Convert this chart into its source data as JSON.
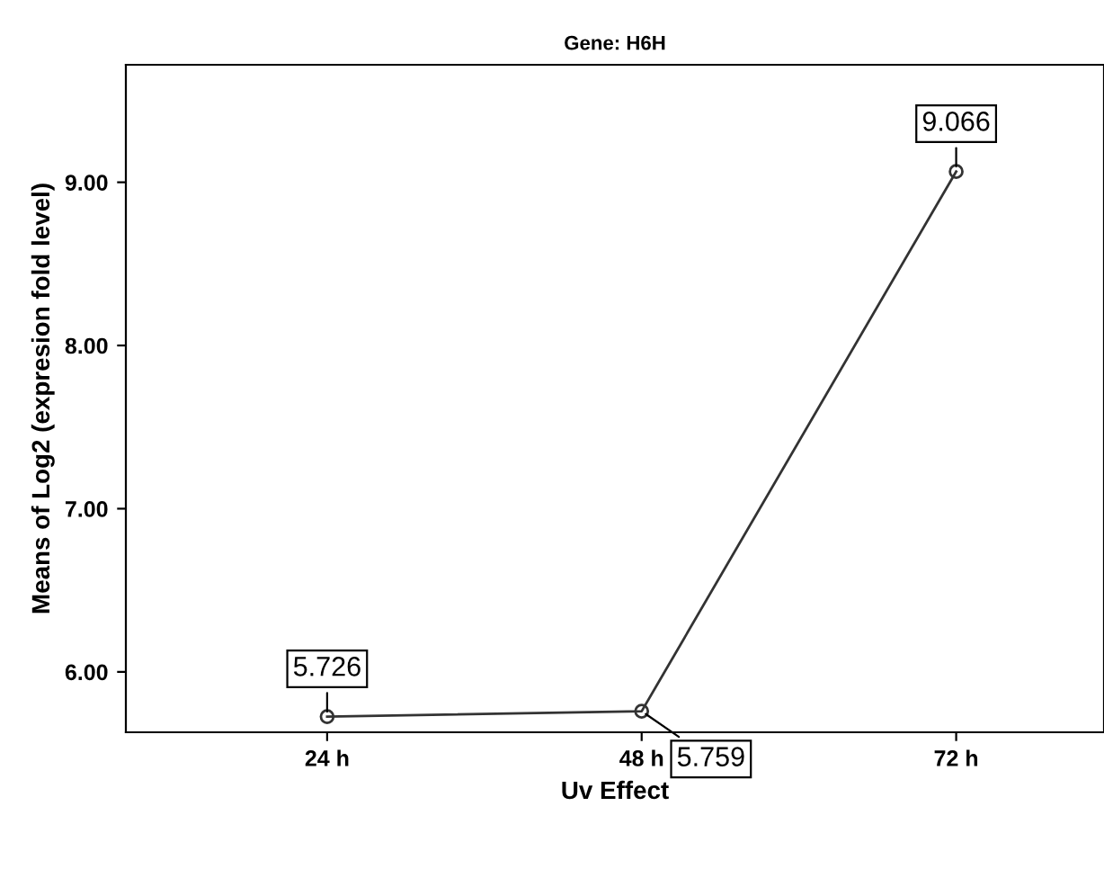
{
  "chart_data": {
    "type": "line",
    "title": "Gene: H6H",
    "xlabel": "Uv Effect",
    "ylabel": "Means of Log2 (expresion fold level)",
    "categories": [
      "24 h",
      "48 h",
      "72 h"
    ],
    "series": [
      {
        "color": "#333333",
        "values": [
          5.726,
          5.759,
          9.066
        ]
      }
    ],
    "ylim": [
      5.63,
      9.72
    ],
    "yticks": [
      {
        "value": 6,
        "label": "6.00"
      },
      {
        "value": 7,
        "label": "7.00"
      },
      {
        "value": 8,
        "label": "8.00"
      },
      {
        "value": 9,
        "label": "9.00"
      }
    ],
    "grid": false,
    "marker": "circle",
    "line_style": "solid",
    "data_labels": true
  }
}
